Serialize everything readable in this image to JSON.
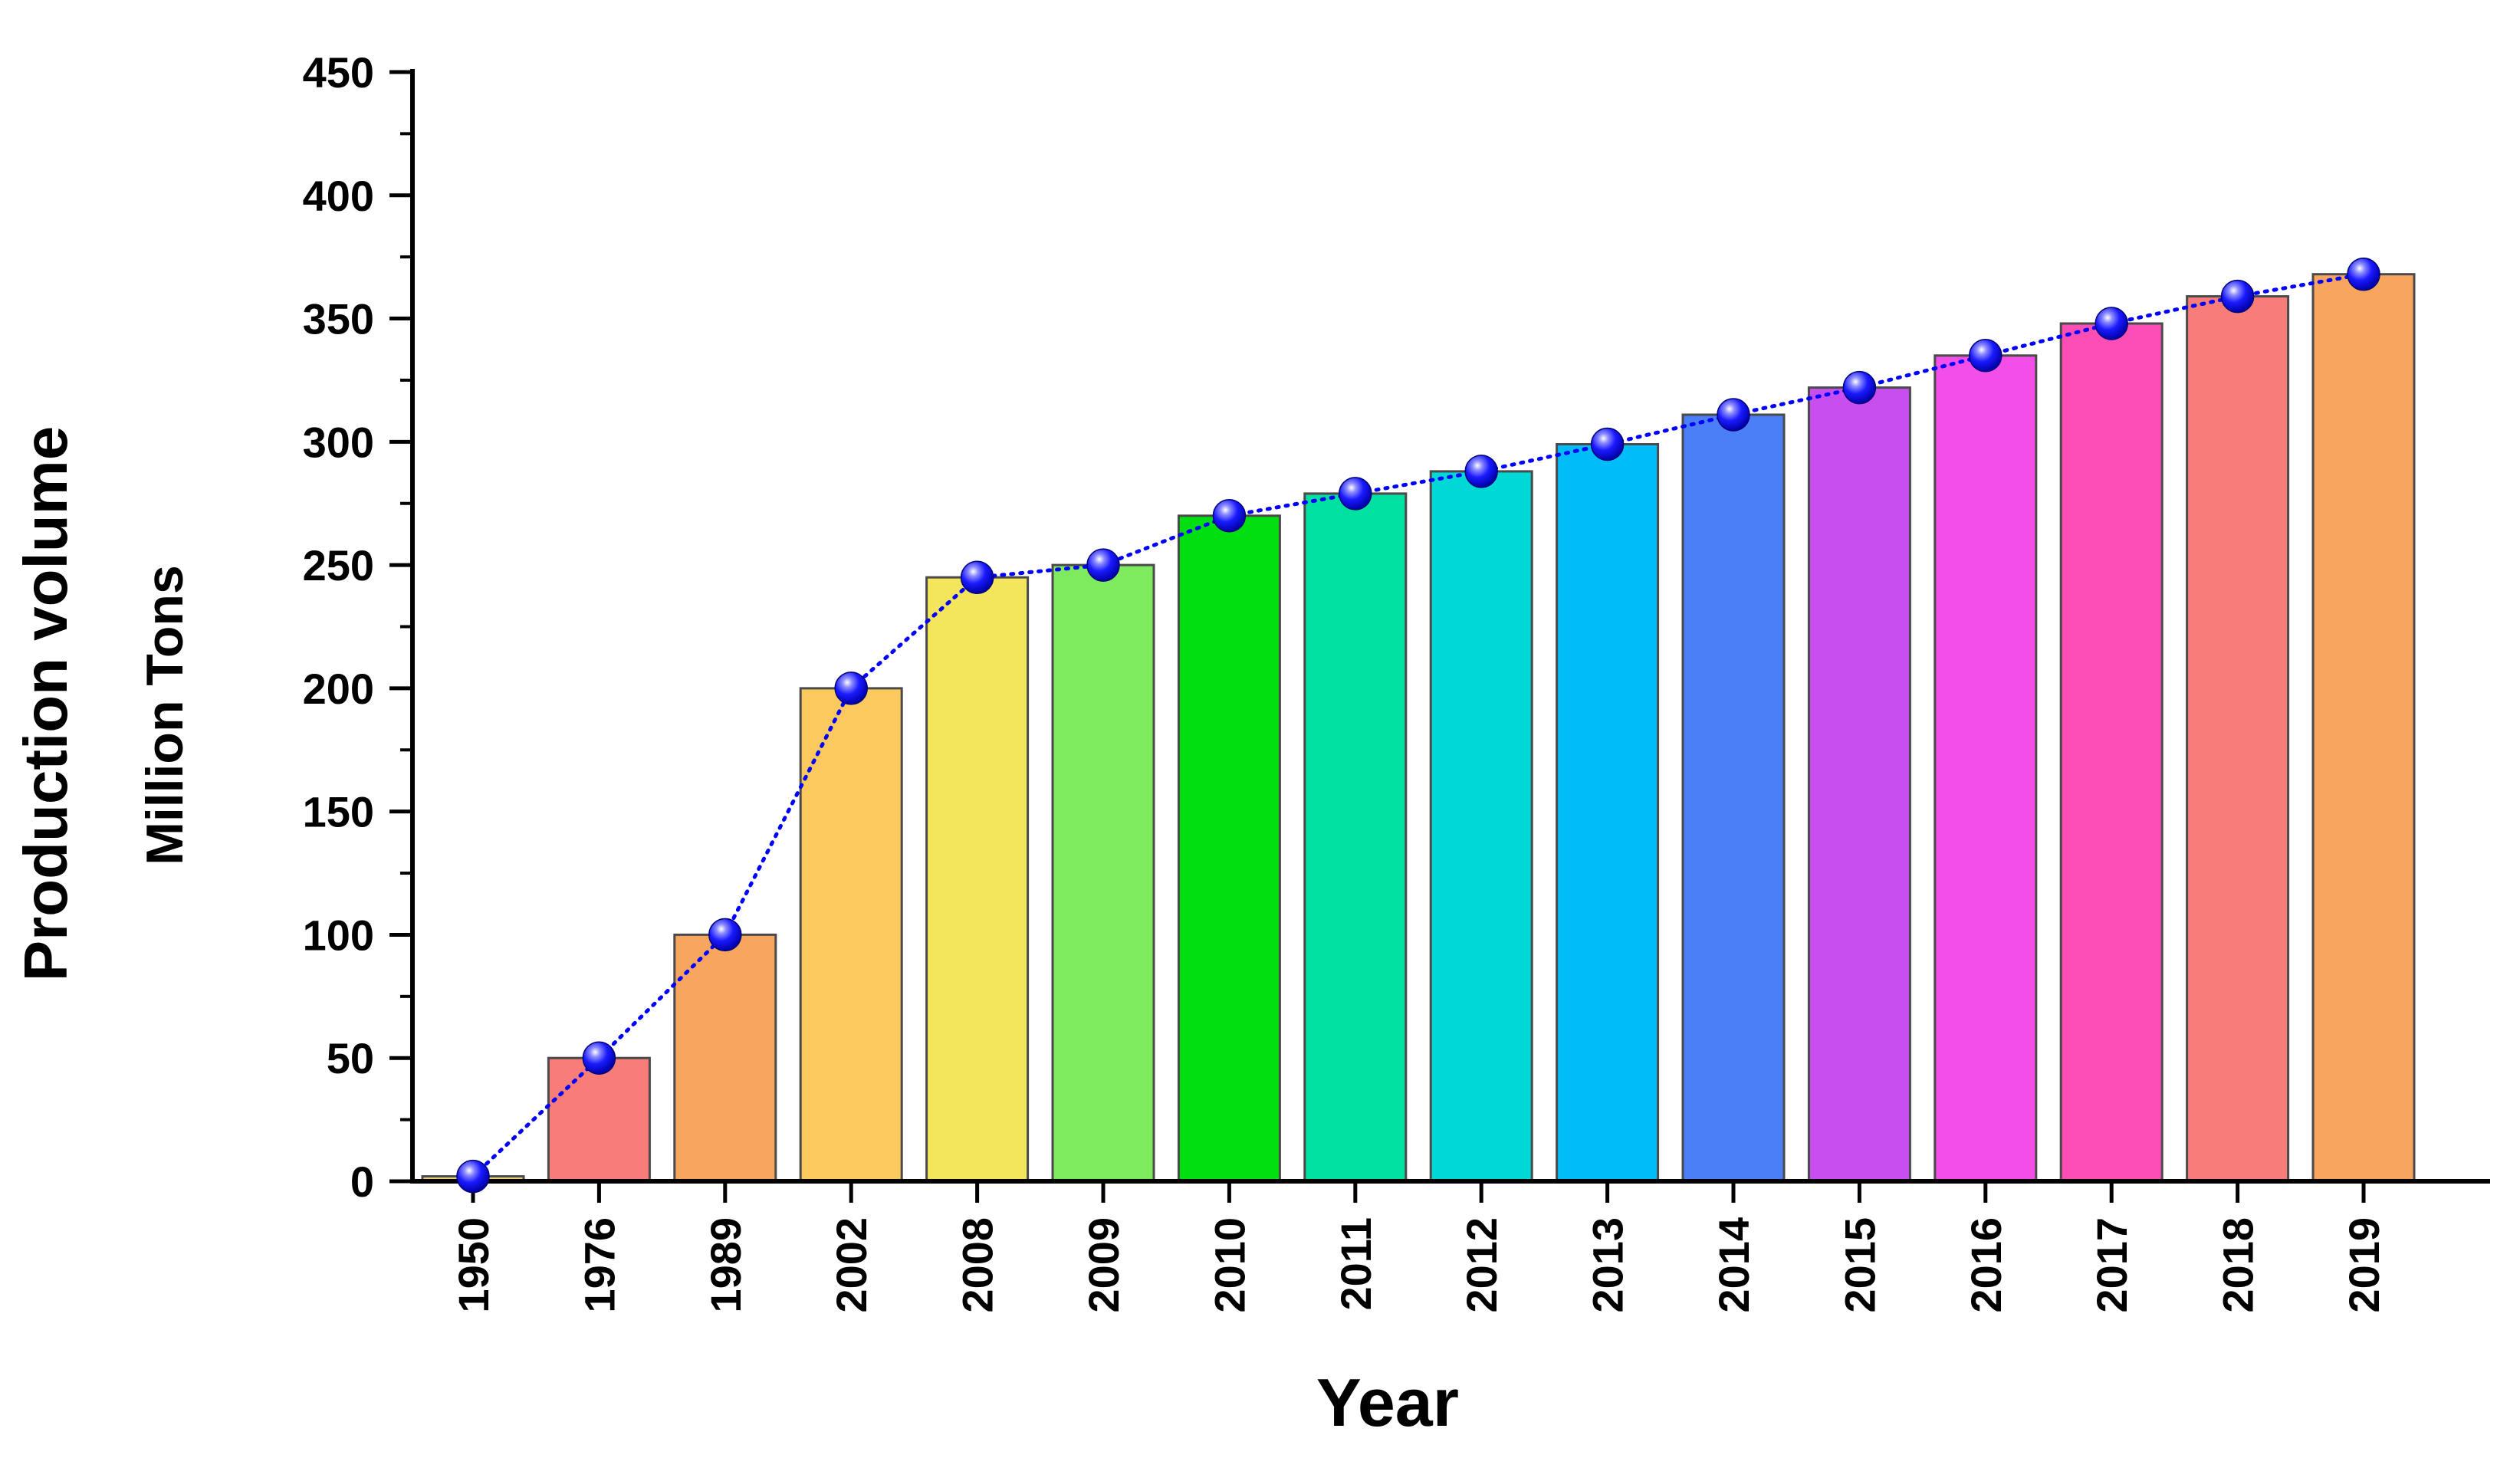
{
  "chart_data": {
    "type": "bar",
    "title": "",
    "xlabel": "Year",
    "ylabel": "Production volume",
    "ylabel_sub": "Million Tons",
    "ylim": [
      0,
      450
    ],
    "yticks": [
      "0",
      "50",
      "100",
      "150",
      "200",
      "250",
      "300",
      "350",
      "400",
      "450"
    ],
    "categories": [
      "1950",
      "1976",
      "1989",
      "2002",
      "2008",
      "2009",
      "2010",
      "2011",
      "2012",
      "2013",
      "2014",
      "2015",
      "2016",
      "2017",
      "2018",
      "2019"
    ],
    "values": [
      2,
      50,
      100,
      200,
      245,
      250,
      270,
      279,
      288,
      299,
      311,
      322,
      335,
      348,
      359,
      368
    ],
    "bar_colors": [
      "#f4d27a",
      "#f87c78",
      "#f8a55e",
      "#fcc95e",
      "#f4e65c",
      "#7eea5e",
      "#00e010",
      "#00e0a0",
      "#00d8d8",
      "#00bcf8",
      "#4a7ff8",
      "#c84ef0",
      "#f44ee8",
      "#fc4eb4",
      "#f87c78",
      "#f8a55e"
    ],
    "line_overlay": {
      "style": "dotted",
      "marker": "sphere",
      "color": "#0000ff"
    },
    "grid": false,
    "legend": "none"
  }
}
